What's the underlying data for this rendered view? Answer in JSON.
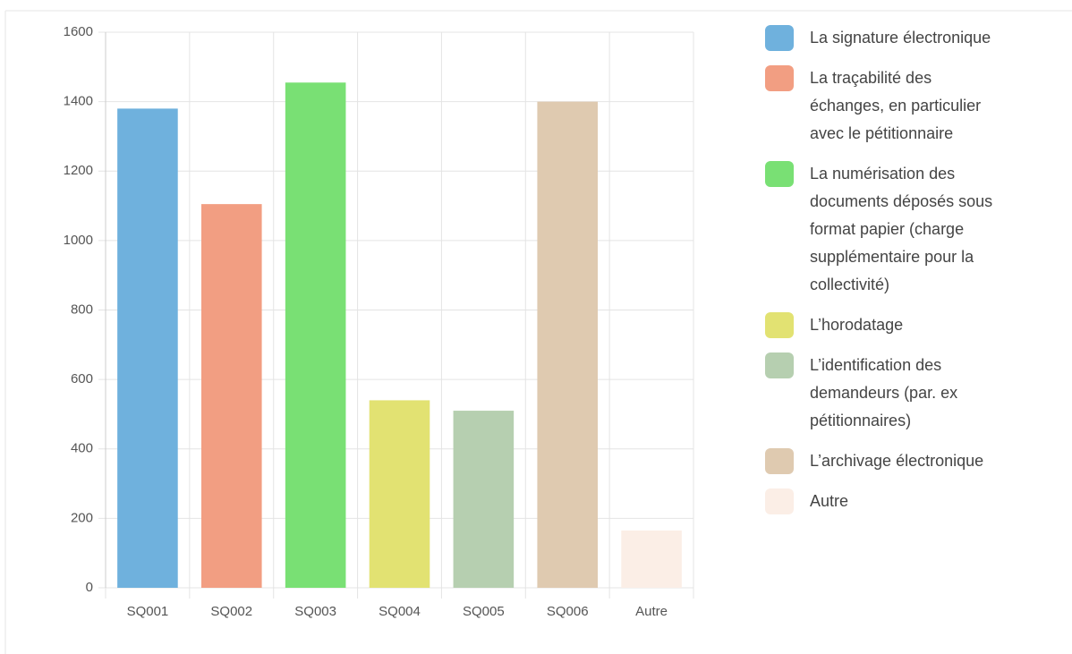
{
  "chart_data": {
    "type": "bar",
    "categories": [
      "SQ001",
      "SQ002",
      "SQ003",
      "SQ004",
      "SQ005",
      "SQ006",
      "Autre"
    ],
    "values": [
      1380,
      1105,
      1455,
      540,
      510,
      1400,
      165
    ],
    "colors": [
      "#6fb1dd",
      "#f29e82",
      "#79e074",
      "#e2e272",
      "#b6cfb0",
      "#dfcab0",
      "#fbeee6"
    ],
    "legend": [
      "La signature électronique",
      "La traçabilité des échanges, en particulier avec le pétitionnaire",
      "La numérisation des documents déposés sous format papier (charge supplémentaire pour la collectivité)",
      "L’horodatage",
      "L’identification des demandeurs (par. ex pétitionnaires)",
      "L’archivage électronique",
      "Autre"
    ],
    "ylim": [
      0,
      1600
    ],
    "yticks": [
      0,
      200,
      400,
      600,
      800,
      1000,
      1200,
      1400,
      1600
    ],
    "grid": true
  }
}
